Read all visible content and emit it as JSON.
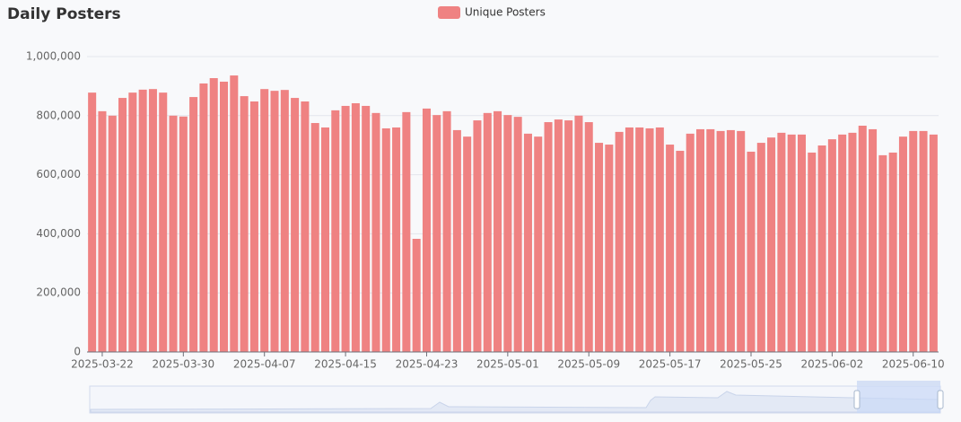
{
  "chart_data": {
    "type": "bar",
    "title": "Daily Posters",
    "categories": [
      null,
      "2025-03-22",
      null,
      null,
      null,
      null,
      null,
      null,
      null,
      "2025-03-30",
      null,
      null,
      null,
      null,
      null,
      null,
      null,
      "2025-04-07",
      null,
      null,
      null,
      null,
      null,
      null,
      null,
      "2025-04-15",
      null,
      null,
      null,
      null,
      null,
      null,
      null,
      "2025-04-23",
      null,
      null,
      null,
      null,
      null,
      null,
      null,
      "2025-05-01",
      null,
      null,
      null,
      null,
      null,
      null,
      null,
      "2025-05-09",
      null,
      null,
      null,
      null,
      null,
      null,
      null,
      "2025-05-17",
      null,
      null,
      null,
      null,
      null,
      null,
      null,
      "2025-05-25",
      null,
      null,
      null,
      null,
      null,
      null,
      null,
      "2025-06-02",
      null,
      null,
      null,
      null,
      null,
      null,
      null,
      "2025-06-10",
      null,
      null
    ],
    "series": [
      {
        "name": "Unique Posters",
        "color": "#ef8282",
        "values": [
          878000,
          815000,
          800000,
          860000,
          878000,
          888000,
          890000,
          878000,
          800000,
          797000,
          863000,
          909000,
          927000,
          915000,
          936000,
          866000,
          848000,
          890000,
          884000,
          887000,
          860000,
          848000,
          775000,
          760000,
          818000,
          833000,
          842000,
          833000,
          809000,
          757000,
          760000,
          812000,
          383000,
          824000,
          802000,
          815000,
          751000,
          729000,
          784000,
          809000,
          815000,
          802000,
          796000,
          739000,
          729000,
          778000,
          787000,
          784000,
          800000,
          778000,
          708000,
          702000,
          745000,
          760000,
          760000,
          757000,
          760000,
          702000,
          681000,
          739000,
          754000,
          754000,
          748000,
          751000,
          748000,
          678000,
          708000,
          726000,
          742000,
          736000,
          736000,
          675000,
          699000,
          720000,
          736000,
          742000,
          766000,
          754000,
          666000,
          675000,
          729000,
          748000,
          748000,
          736000
        ]
      }
    ],
    "ylim": [
      0,
      1000000
    ],
    "yticks": [
      0,
      {
        "value": 200000,
        "label": "200,000"
      },
      {
        "value": 400000,
        "label": "400,000"
      },
      {
        "value": 600000,
        "label": "600,000"
      },
      {
        "value": 800000,
        "label": "800,000"
      },
      {
        "value": 1000000,
        "label": "1,000,000"
      }
    ],
    "grid": true,
    "legend": "top"
  }
}
